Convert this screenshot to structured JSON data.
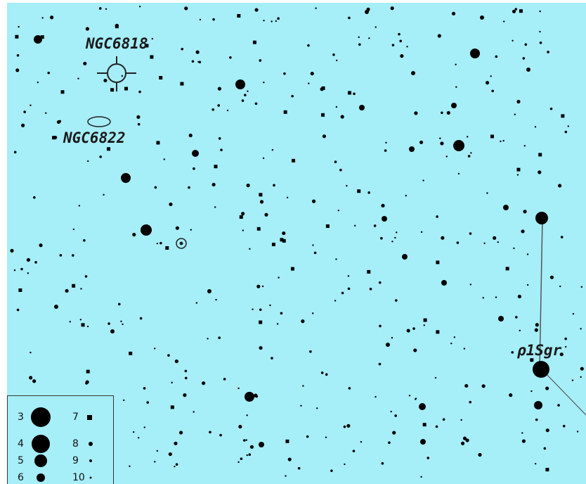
{
  "colors": {
    "sky": "#a6eef8",
    "star": "#000000",
    "line": "#555555"
  },
  "objects": {
    "ngc6818_label": "NGC6818",
    "ngc6822_label": "NGC6822",
    "rho1sgr_label": "ρ1Sgr"
  },
  "legend": {
    "items": [
      {
        "mag": "3",
        "marker": "disc"
      },
      {
        "mag": "4",
        "marker": "disc"
      },
      {
        "mag": "5",
        "marker": "disc"
      },
      {
        "mag": "6",
        "marker": "disc"
      },
      {
        "mag": "7",
        "marker": "square"
      },
      {
        "mag": "8",
        "marker": "dot"
      },
      {
        "mag": "9",
        "marker": "dot"
      },
      {
        "mag": "10",
        "marker": "dot"
      }
    ]
  }
}
